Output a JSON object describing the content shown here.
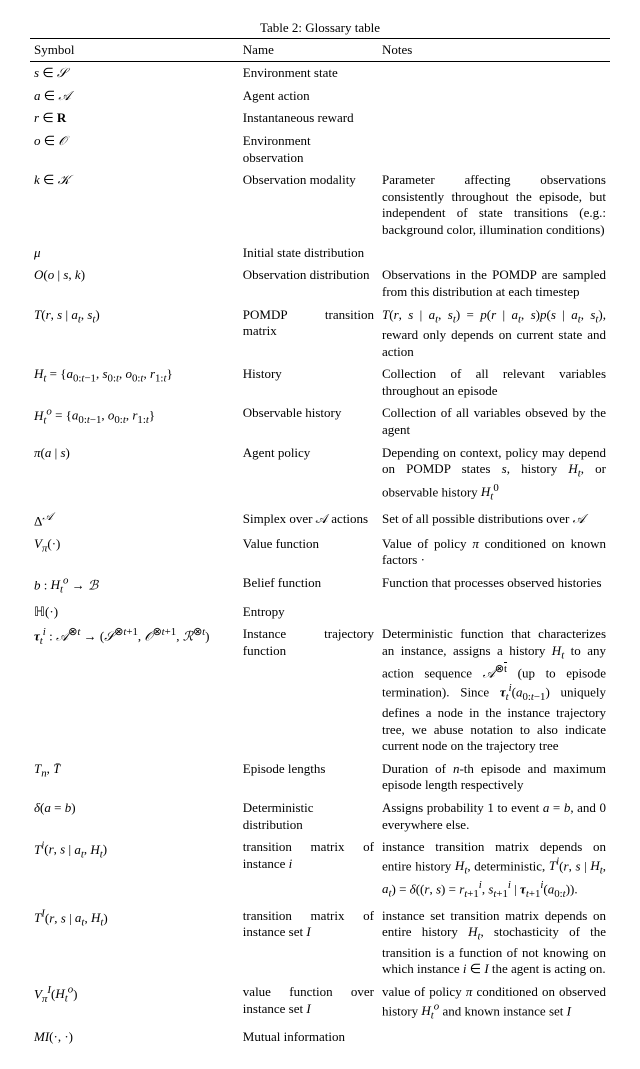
{
  "caption": "Table 2: Glossary table",
  "columns": [
    "Symbol",
    "Name",
    "Notes"
  ],
  "rows": [
    {
      "symbol_html": "<span class='math'>s</span> ∈ <span class='math'>𝒮</span>",
      "name": "Environment state",
      "notes": ""
    },
    {
      "symbol_html": "<span class='math'>a</span> ∈ <span class='math'>𝒜</span>",
      "name": "Agent action",
      "notes": ""
    },
    {
      "symbol_html": "<span class='math'>r</span> ∈ <b>R</b>",
      "name": "Instantaneous reward",
      "notes": ""
    },
    {
      "symbol_html": "<span class='math'>o</span> ∈ <span class='math'>𝒪</span>",
      "name": "Environment observation",
      "notes": ""
    },
    {
      "symbol_html": "<span class='math'>k</span> ∈ <span class='math'>𝒦</span>",
      "name": "Observation modality",
      "notes": "Parameter affecting observations consistently throughout the episode, but independent of state transitions (e.g.: background color, illumination conditions)"
    },
    {
      "symbol_html": "<span class='math'>μ</span>",
      "name": "Initial state distribution",
      "notes": ""
    },
    {
      "symbol_html": "<span class='math'>O</span>(<span class='math'>o</span> | <span class='math'>s</span>, <span class='math'>k</span>)",
      "name": "Observation distribution",
      "notes": "Observations in the POMDP are sampled from this distribution at each timestep"
    },
    {
      "symbol_html": "<span class='math'>T</span>(<span class='math'>r</span>, <span class='math'>s</span> | <span class='math'>a<sub>t</sub></span>, <span class='math'>s<sub>t</sub></span>)",
      "name": "POMDP transition matrix",
      "notes_html": "<span class='math'>T</span>(<span class='math'>r</span>, <span class='math'>s</span> | <span class='math'>a<sub>t</sub></span>, <span class='math'>s<sub>t</sub></span>) = <span class='math'>p</span>(<span class='math'>r</span> | <span class='math'>a<sub>t</sub></span>, <span class='math'>s</span>)<span class='math'>p</span>(<span class='math'>s</span> | <span class='math'>a<sub>t</sub></span>, <span class='math'>s<sub>t</sub></span>), reward only depends on current state and action"
    },
    {
      "symbol_html": "<span class='math'>H<sub>t</sub></span> = {<span class='math'>a</span><sub>0:<span class='math'>t</span>−1</sub>, <span class='math'>s</span><sub>0:<span class='math'>t</span></sub>, <span class='math'>o</span><sub>0:<span class='math'>t</span></sub>, <span class='math'>r</span><sub>1:<span class='math'>t</span></sub>}",
      "name": "History",
      "notes": "Collection of all relevant variables throughout an episode"
    },
    {
      "symbol_html": "<span class='math'>H<sub>t</sub><sup>o</sup></span> = {<span class='math'>a</span><sub>0:<span class='math'>t</span>−1</sub>, <span class='math'>o</span><sub>0:<span class='math'>t</span></sub>, <span class='math'>r</span><sub>1:<span class='math'>t</span></sub>}",
      "name": "Observable history",
      "notes": "Collection of all variables obseved by the agent"
    },
    {
      "symbol_html": "<span class='math'>π</span>(<span class='math'>a</span> | <span class='math'>s</span>)",
      "name": "Agent policy",
      "notes_html": "Depending on context, policy may depend on POMDP states <span class='math'>s</span>, history <span class='math'>H<sub>t</sub></span>, or observable history <span class='math'>H<sub>t</sub></span><sup>0</sup>"
    },
    {
      "symbol_html": "Δ<sup><span class='math'>𝒜</span></sup>",
      "name": "Simplex over 𝒜 actions",
      "notes_html": "Set of all possible distributions over <span class='math'>𝒜</span>"
    },
    {
      "symbol_html": "<span class='math'>V<sub>π</sub></span>(·)",
      "name": "Value function",
      "notes_html": "Value of policy <span class='math'>π</span> conditioned on known factors ·"
    },
    {
      "symbol_html": "<span class='math'>b</span> : <span class='math'>H<sub>t</sub><sup>o</sup></span> → <span class='math'>ℬ</span>",
      "name": "Belief function",
      "notes": "Function that processes observed histories"
    },
    {
      "symbol_html": "ℍ(·)",
      "name": "Entropy",
      "notes": ""
    },
    {
      "symbol_html": "<b><span class='math'>τ</span></b><sub><span class='math'>t</span></sub><sup><span class='math'>i</span></sup> : <span class='math'>𝒜</span><sup>⊗<span class='math'>t</span></sup> → (<span class='math'>𝒮</span><sup>⊗<span class='math'>t</span>+1</sup>, <span class='math'>𝒪</span><sup>⊗<span class='math'>t</span>+1</sup>, <span class='math'>ℛ</span><sup>⊗<span class='math'>t</span></sup>)",
      "name": "Instance trajectory function",
      "notes_html": "Deterministic function that characterizes an instance, assigns a history <span class='math'>H<sub>t</sub></span> to any action sequence <span class='math'>𝒜</span><sup>⊗<span style='text-decoration:overline'>t</span></sup> (up to episode termination). Since <b><span class='math'>τ</span></b><sub><span class='math'>t</span></sub><sup><span class='math'>i</span></sup>(<span class='math'>a</span><sub>0:<span class='math'>t</span>−1</sub>) uniquely defines a node in the instance trajectory tree, we abuse notation to also indicate current node on the trajectory tree"
    },
    {
      "symbol_html": "<span class='math'>T<sub>n</sub></span>, <span class='math'>T̄</span>",
      "name": "Episode lengths",
      "notes_html": "Duration of <span class='math'>n</span>-th episode and maximum episode length respectively"
    },
    {
      "symbol_html": "<span class='math'>δ</span>(<span class='math'>a</span> = <span class='math'>b</span>)",
      "name": "Deterministic distribution",
      "notes_html": "Assigns probability 1 to event <span class='math'>a</span> = <span class='math'>b</span>, and 0 everywhere else."
    },
    {
      "symbol_html": "<span class='math'>T<sup>i</sup></span>(<span class='math'>r</span>, <span class='math'>s</span> | <span class='math'>a<sub>t</sub></span>, <span class='math'>H<sub>t</sub></span>)",
      "name_html": "transition matrix of instance <span class='math'>i</span>",
      "notes_html": "instance transition matrix depends on entire history <span class='math'>H<sub>t</sub></span>, deterministic, <span class='math'>T<sup>i</sup></span>(<span class='math'>r</span>, <span class='math'>s</span> | <span class='math'>H<sub>t</sub></span>, <span class='math'>a<sub>t</sub></span>) = <span class='math'>δ</span>((<span class='math'>r</span>, <span class='math'>s</span>) = <span class='math'>r</span><sub><span class='math'>t</span>+1</sub><sup><span class='math'>i</span></sup>, <span class='math'>s</span><sub><span class='math'>t</span>+1</sub><sup><span class='math'>i</span></sup> | <b><span class='math'>τ</span></b><sub><span class='math'>t</span>+1</sub><sup><span class='math'>i</span></sup>(<span class='math'>a</span><sub>0:<span class='math'>t</span></sub>))."
    },
    {
      "symbol_html": "<span class='math'>T<sup>I</sup></span>(<span class='math'>r</span>, <span class='math'>s</span> | <span class='math'>a<sub>t</sub></span>, <span class='math'>H<sub>t</sub></span>)",
      "name_html": "transition matrix of instance set <span class='math'>I</span>",
      "notes_html": "instance set transition matrix depends on entire history <span class='math'>H<sub>t</sub></span>, stochasticity of the transition is a function of not knowing on which instance <span class='math'>i</span> ∈ <span class='math'>I</span> the agent is acting on."
    },
    {
      "symbol_html": "<span class='math'>V</span><sub><span class='math'>π</span></sub><sup><span class='math'>I</span></sup>(<span class='math'>H<sub>t</sub><sup>o</sup></span>)",
      "name_html": "value function over instance set <span class='math'>I</span>",
      "notes_html": "value of policy <span class='math'>π</span> conditioned on observed history <span class='math'>H<sub>t</sub><sup>o</sup></span> and known instance set <span class='math'>I</span>"
    },
    {
      "symbol_html": "<span class='math'>MI</span>(·, ·)",
      "name": "Mutual information",
      "notes": ""
    }
  ]
}
